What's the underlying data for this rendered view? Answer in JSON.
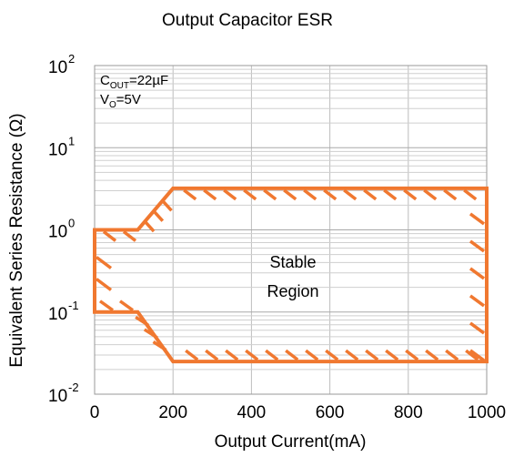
{
  "chart_data": {
    "type": "area",
    "title": "Output Capacitor ESR",
    "xlabel": "Output Current(mA)",
    "ylabel": "Equivalent Series Resistance (Ω)",
    "xlim": [
      0,
      1000
    ],
    "ylim": [
      0.01,
      100
    ],
    "yscale": "log",
    "grid": true,
    "x_ticks": [
      {
        "value": 0,
        "label": "0"
      },
      {
        "value": 200,
        "label": "200"
      },
      {
        "value": 400,
        "label": "400"
      },
      {
        "value": 600,
        "label": "600"
      },
      {
        "value": 800,
        "label": "800"
      },
      {
        "value": 1000,
        "label": "1000"
      }
    ],
    "y_ticks": [
      {
        "value": 100,
        "base": "10",
        "exp": "2"
      },
      {
        "value": 10,
        "base": "10",
        "exp": "1"
      },
      {
        "value": 1,
        "base": "10",
        "exp": "0"
      },
      {
        "value": 0.1,
        "base": "10",
        "exp": "-1"
      },
      {
        "value": 0.01,
        "base": "10",
        "exp": "-2"
      }
    ],
    "conditions": [
      {
        "main": "C",
        "sub": "OUT",
        "rest": "=22µF"
      },
      {
        "main": "V",
        "sub": "O",
        "rest": "=5V"
      }
    ],
    "region_label": [
      "Stable",
      "Region"
    ],
    "boundary": {
      "color": "#f07830",
      "upper": [
        {
          "x": 0,
          "y": 1.0
        },
        {
          "x": 110,
          "y": 1.0
        },
        {
          "x": 200,
          "y": 3.2
        },
        {
          "x": 1000,
          "y": 3.2
        }
      ],
      "lower": [
        {
          "x": 0,
          "y": 0.1
        },
        {
          "x": 110,
          "y": 0.1
        },
        {
          "x": 200,
          "y": 0.025
        },
        {
          "x": 1000,
          "y": 0.025
        }
      ]
    }
  }
}
